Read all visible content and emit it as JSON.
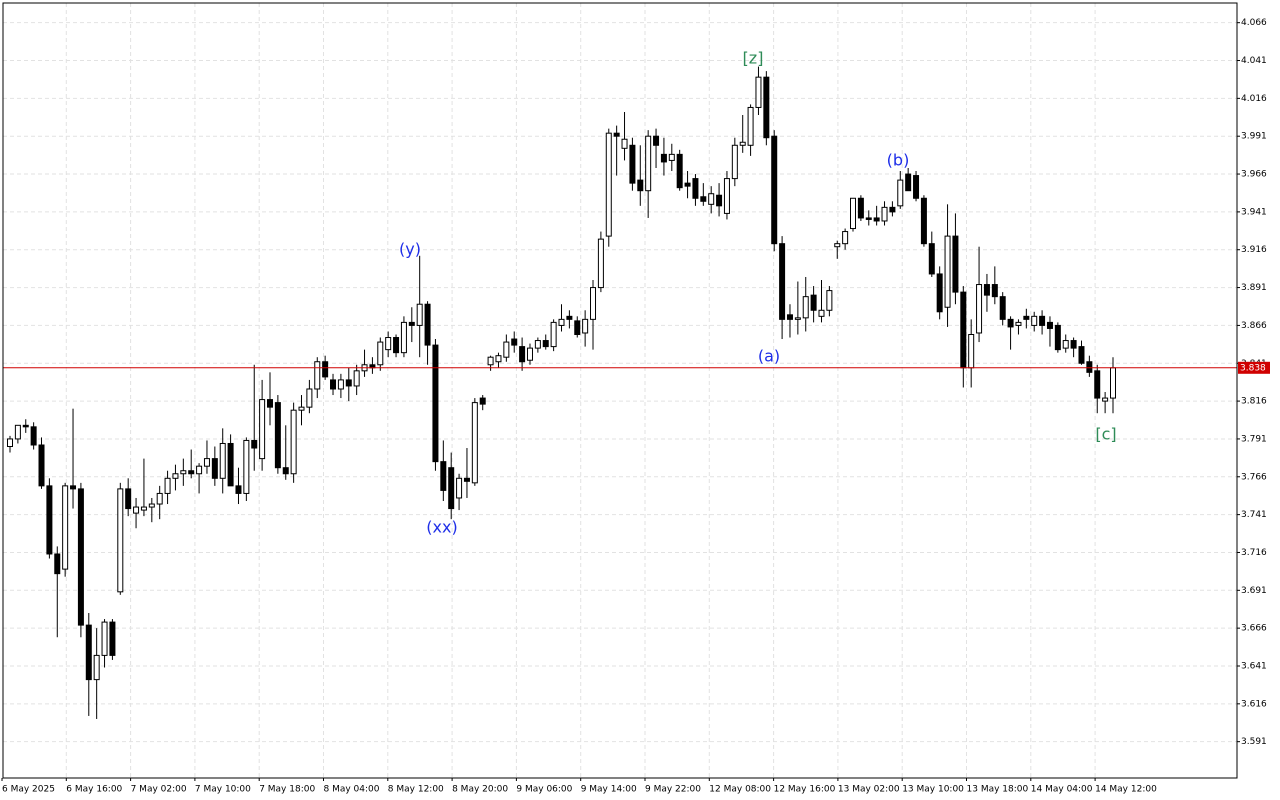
{
  "chart_data": {
    "type": "candlestick",
    "bull_color": "#ffffff",
    "bear_color": "#000000",
    "price_line_color": "#d00000",
    "grid": true,
    "ylim": [
      3.567,
      4.079
    ],
    "yticks": [
      3.591,
      3.616,
      3.641,
      3.666,
      3.691,
      3.716,
      3.741,
      3.766,
      3.791,
      3.816,
      3.841,
      3.866,
      3.891,
      3.916,
      3.941,
      3.966,
      3.991,
      4.016,
      4.041,
      4.066
    ],
    "current_price": 3.838,
    "x_labels": [
      "6 May 2025",
      "6 May 16:00",
      "7 May 02:00",
      "7 May 10:00",
      "7 May 18:00",
      "8 May 04:00",
      "8 May 12:00",
      "8 May 20:00",
      "9 May 06:00",
      "9 May 14:00",
      "9 May 22:00",
      "12 May 08:00",
      "12 May 16:00",
      "13 May 02:00",
      "13 May 10:00",
      "13 May 18:00",
      "14 May 04:00",
      "14 May 12:00"
    ],
    "annotations": [
      {
        "text": "(y)",
        "color": "#1e2ee8"
      },
      {
        "text": "(xx)",
        "color": "#1e2ee8"
      },
      {
        "text": "[z]",
        "color": "#2e8b57"
      },
      {
        "text": "(a)",
        "color": "#1e2ee8"
      },
      {
        "text": "(b)",
        "color": "#1e2ee8"
      },
      {
        "text": "[c]",
        "color": "#2e8b57"
      }
    ],
    "open": [
      3.786,
      3.791,
      3.8,
      3.799,
      3.787,
      3.76,
      3.715,
      3.705,
      3.76,
      3.758,
      3.668,
      3.632,
      3.648,
      3.67,
      3.69,
      3.758,
      3.742,
      3.744,
      3.746,
      3.748,
      3.755,
      3.765,
      3.768,
      3.77,
      3.768,
      3.773,
      3.778,
      3.765,
      3.788,
      3.76,
      3.755,
      3.79,
      3.778,
      3.817,
      3.815,
      3.772,
      3.768,
      3.81,
      3.812,
      3.824,
      3.842,
      3.83,
      3.824,
      3.83,
      3.826,
      3.836,
      3.84,
      3.84,
      3.85,
      3.858,
      3.848,
      3.868,
      3.866,
      3.88,
      3.853,
      3.776,
      3.772,
      3.752,
      3.765,
      3.762,
      3.818,
      3.84,
      3.842,
      3.845,
      3.857,
      3.852,
      3.843,
      3.851,
      3.856,
      3.852,
      3.866,
      3.872,
      3.869,
      3.861,
      3.87,
      3.891,
      3.925,
      3.993,
      3.983,
      3.985,
      3.962,
      3.955,
      3.991,
      3.979,
      3.975,
      3.979,
      3.96,
      3.963,
      3.951,
      3.946,
      3.952,
      3.94,
      3.963,
      3.985,
      3.985,
      4.01,
      4.03,
      3.991,
      3.92,
      3.873,
      3.87,
      3.871,
      3.886,
      3.872,
      3.876,
      3.918,
      3.92,
      3.93,
      3.95,
      3.937,
      3.937,
      3.935,
      3.944,
      3.945,
      3.966,
      3.965,
      3.95,
      3.92,
      3.9,
      3.878,
      3.925,
      3.888,
      3.838,
      3.861,
      3.893,
      3.893,
      3.885,
      3.87,
      3.866,
      3.872,
      3.866,
      3.872,
      3.868,
      3.866,
      3.851,
      3.856,
      3.852,
      3.842,
      3.836,
      3.816,
      3.818
    ],
    "high": [
      3.793,
      3.8,
      3.804,
      3.802,
      3.792,
      3.765,
      3.72,
      3.762,
      3.811,
      3.762,
      3.676,
      3.666,
      3.672,
      3.672,
      3.762,
      3.765,
      3.752,
      3.778,
      3.752,
      3.76,
      3.77,
      3.774,
      3.778,
      3.784,
      3.775,
      3.79,
      3.786,
      3.798,
      3.794,
      3.772,
      3.792,
      3.84,
      3.83,
      3.835,
      3.82,
      3.8,
      3.815,
      3.82,
      3.83,
      3.845,
      3.846,
      3.834,
      3.834,
      3.838,
      3.84,
      3.85,
      3.845,
      3.858,
      3.862,
      3.86,
      3.872,
      3.878,
      3.912,
      3.882,
      3.857,
      3.79,
      3.782,
      3.768,
      3.785,
      3.818,
      3.82,
      3.846,
      3.848,
      3.86,
      3.862,
      3.858,
      3.854,
      3.858,
      3.86,
      3.87,
      3.88,
      3.876,
      3.872,
      3.876,
      3.896,
      3.928,
      3.996,
      3.998,
      4.007,
      3.99,
      3.985,
      3.995,
      3.996,
      3.99,
      3.986,
      3.982,
      3.968,
      3.966,
      3.96,
      3.958,
      3.96,
      3.968,
      3.99,
      4.005,
      4.012,
      4.037,
      4.034,
      3.995,
      3.925,
      3.88,
      3.895,
      3.898,
      3.892,
      3.896,
      3.892,
      3.922,
      3.93,
      3.95,
      3.952,
      3.942,
      3.945,
      3.948,
      3.948,
      3.968,
      3.97,
      3.968,
      3.952,
      3.928,
      3.905,
      3.946,
      3.94,
      3.892,
      3.87,
      3.918,
      3.9,
      3.905,
      3.888,
      3.872,
      3.87,
      3.877,
      3.875,
      3.876,
      3.872,
      3.868,
      3.86,
      3.858,
      3.856,
      3.846,
      3.84,
      3.822,
      3.845
    ],
    "low": [
      3.782,
      3.788,
      3.795,
      3.784,
      3.758,
      3.712,
      3.66,
      3.7,
      3.745,
      3.66,
      3.608,
      3.606,
      3.64,
      3.645,
      3.688,
      3.74,
      3.732,
      3.74,
      3.736,
      3.738,
      3.748,
      3.757,
      3.76,
      3.765,
      3.755,
      3.768,
      3.76,
      3.755,
      3.76,
      3.748,
      3.75,
      3.77,
      3.77,
      3.8,
      3.768,
      3.764,
      3.762,
      3.8,
      3.808,
      3.818,
      3.83,
      3.82,
      3.818,
      3.816,
      3.82,
      3.832,
      3.834,
      3.836,
      3.845,
      3.845,
      3.845,
      3.855,
      3.845,
      3.84,
      3.77,
      3.75,
      3.738,
      3.744,
      3.752,
      3.76,
      3.81,
      3.836,
      3.838,
      3.842,
      3.848,
      3.836,
      3.84,
      3.848,
      3.85,
      3.849,
      3.862,
      3.864,
      3.858,
      3.852,
      3.85,
      3.888,
      3.918,
      3.965,
      3.975,
      3.955,
      3.945,
      3.937,
      3.97,
      3.965,
      3.968,
      3.955,
      3.95,
      3.945,
      3.945,
      3.94,
      3.938,
      3.936,
      3.958,
      3.98,
      3.978,
      4.005,
      3.985,
      3.915,
      3.857,
      3.858,
      3.86,
      3.862,
      3.868,
      3.868,
      3.872,
      3.91,
      3.916,
      3.928,
      3.935,
      3.932,
      3.932,
      3.932,
      3.938,
      3.943,
      3.955,
      3.948,
      3.918,
      3.898,
      3.87,
      3.865,
      3.88,
      3.825,
      3.825,
      3.855,
      3.875,
      3.88,
      3.866,
      3.85,
      3.86,
      3.864,
      3.862,
      3.86,
      3.852,
      3.848,
      3.848,
      3.845,
      3.84,
      3.832,
      3.808,
      3.808,
      3.808
    ],
    "close": [
      3.791,
      3.8,
      3.799,
      3.787,
      3.76,
      3.715,
      3.702,
      3.76,
      3.758,
      3.668,
      3.632,
      3.648,
      3.67,
      3.648,
      3.758,
      3.745,
      3.746,
      3.746,
      3.748,
      3.755,
      3.765,
      3.768,
      3.77,
      3.768,
      3.773,
      3.778,
      3.765,
      3.788,
      3.76,
      3.755,
      3.79,
      3.785,
      3.817,
      3.812,
      3.772,
      3.768,
      3.81,
      3.812,
      3.824,
      3.842,
      3.832,
      3.824,
      3.83,
      3.826,
      3.836,
      3.84,
      3.838,
      3.855,
      3.858,
      3.848,
      3.868,
      3.866,
      3.88,
      3.853,
      3.776,
      3.757,
      3.745,
      3.765,
      3.763,
      3.815,
      3.814,
      3.845,
      3.846,
      3.855,
      3.853,
      3.842,
      3.851,
      3.856,
      3.852,
      3.868,
      3.87,
      3.87,
      3.86,
      3.87,
      3.891,
      3.923,
      3.993,
      3.991,
      3.989,
      3.96,
      3.955,
      3.991,
      3.985,
      3.974,
      3.979,
      3.957,
      3.958,
      3.95,
      3.948,
      3.953,
      3.945,
      3.963,
      3.985,
      3.987,
      4.01,
      4.03,
      3.99,
      3.92,
      3.87,
      3.87,
      3.871,
      3.885,
      3.876,
      3.876,
      3.889,
      3.92,
      3.928,
      3.95,
      3.937,
      3.936,
      3.935,
      3.944,
      3.941,
      3.962,
      3.955,
      3.95,
      3.92,
      3.9,
      3.875,
      3.925,
      3.888,
      3.838,
      3.86,
      3.893,
      3.886,
      3.885,
      3.87,
      3.865,
      3.868,
      3.87,
      3.872,
      3.866,
      3.864,
      3.85,
      3.856,
      3.851,
      3.841,
      3.835,
      3.818,
      3.818,
      3.838
    ]
  }
}
